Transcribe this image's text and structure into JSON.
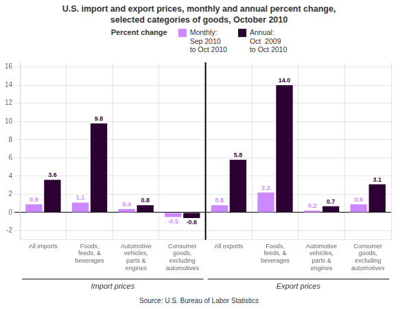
{
  "chart_data": {
    "type": "bar",
    "title": "U.S. import and export prices, monthly and annual percent change,\nselected categories of goods, October 2010",
    "source": "Source: U.S. Bureau of Labor Statistics",
    "legend_title": "Percent change",
    "legend": "top",
    "category_groups": [
      {
        "label": "Import prices",
        "categories": [
          "All imports",
          "Foods,\nfeeds, &\nbeverages",
          "Automotive\nvehicles,\nparts &\nengines",
          "Consumer\ngoods,\nexcluding\nautomotives"
        ]
      },
      {
        "label": "Export prices",
        "categories": [
          "All exports",
          "Foods,\nfeeds, &\nbeverages",
          "Automotive\nvehicles,\nparts &\nengines",
          "Consumer\ngoods,\nexcluding\nautomotives"
        ]
      }
    ],
    "series": [
      {
        "name": "Monthly:\nSep 2010\nto Oct 2010",
        "color": "#cc88ff",
        "values": [
          0.9,
          1.1,
          0.4,
          -0.5,
          0.8,
          2.2,
          0.2,
          0.9
        ],
        "value_labels": [
          "0.9",
          "1.1",
          "0.4",
          "-0.5",
          "0.8",
          "2.2",
          "0.2",
          "0.9"
        ]
      },
      {
        "name": "Annual:\nOct  2009\nto Oct 2010",
        "color": "#2d0033",
        "values": [
          3.6,
          9.8,
          0.8,
          -0.6,
          5.8,
          14.0,
          0.7,
          3.1
        ],
        "value_labels": [
          "3.6",
          "9.8",
          "0.8",
          "-0.6",
          "5.8",
          "14.0",
          "0.7",
          "3.1"
        ]
      }
    ],
    "ylim": [
      -3,
      16.5
    ],
    "yticks": [
      -2,
      0,
      2,
      4,
      6,
      8,
      10,
      12,
      14,
      16
    ],
    "grid": true,
    "data_labels": true
  }
}
